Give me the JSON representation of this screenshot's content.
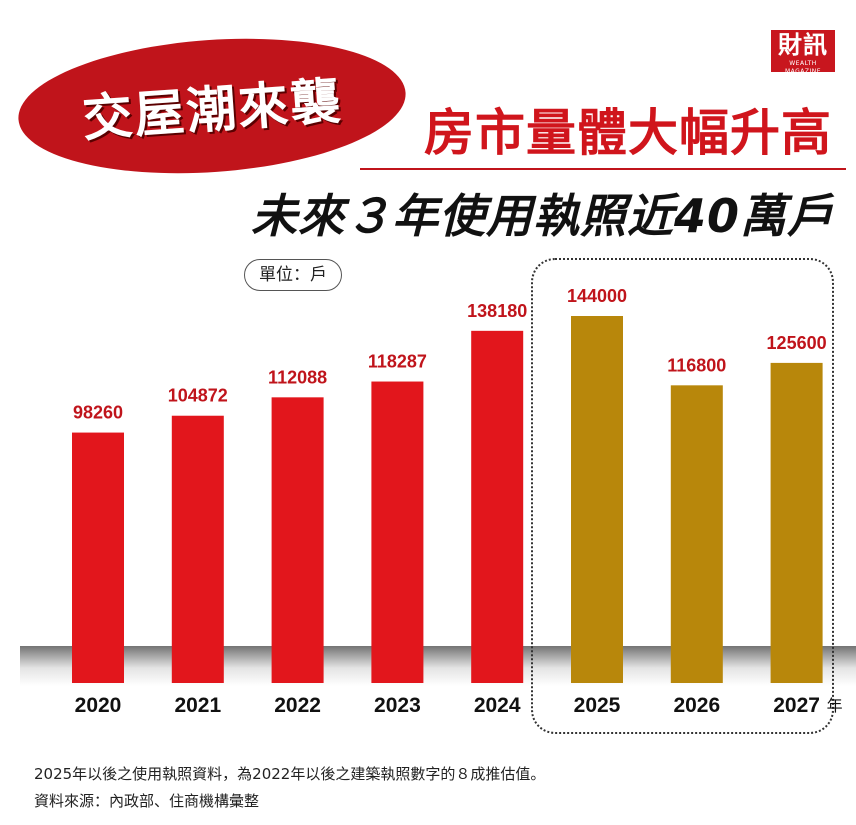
{
  "logo": {
    "main": "財訊",
    "sub": "WEALTH MAGAZINE"
  },
  "headline": {
    "badge": "交屋潮來襲",
    "line1": "房市量體大幅升高",
    "line2": "未來３年使用執照近40萬戶"
  },
  "unit_label": "單位：戶",
  "footnote": "2025年以後之使用執照資料，為2022年以後之建築執照數字的８成推估值。",
  "source": "資料來源：內政部、住商機構彙整",
  "colors": {
    "actual": "#e2161c",
    "forecast": "#b8870b",
    "accent": "#c0141b"
  },
  "chart_data": {
    "type": "bar",
    "title": "",
    "xlabel": "年",
    "ylabel": "",
    "categories": [
      "2020",
      "2021",
      "2022",
      "2023",
      "2024",
      "2025",
      "2026",
      "2027"
    ],
    "values": [
      98260,
      104872,
      112088,
      118287,
      138180,
      144000,
      116800,
      125600
    ],
    "kinds": [
      "actual",
      "actual",
      "actual",
      "actual",
      "actual",
      "forecast",
      "forecast",
      "forecast"
    ],
    "ylim": [
      0,
      144000
    ],
    "grid": false,
    "legend": "none"
  }
}
